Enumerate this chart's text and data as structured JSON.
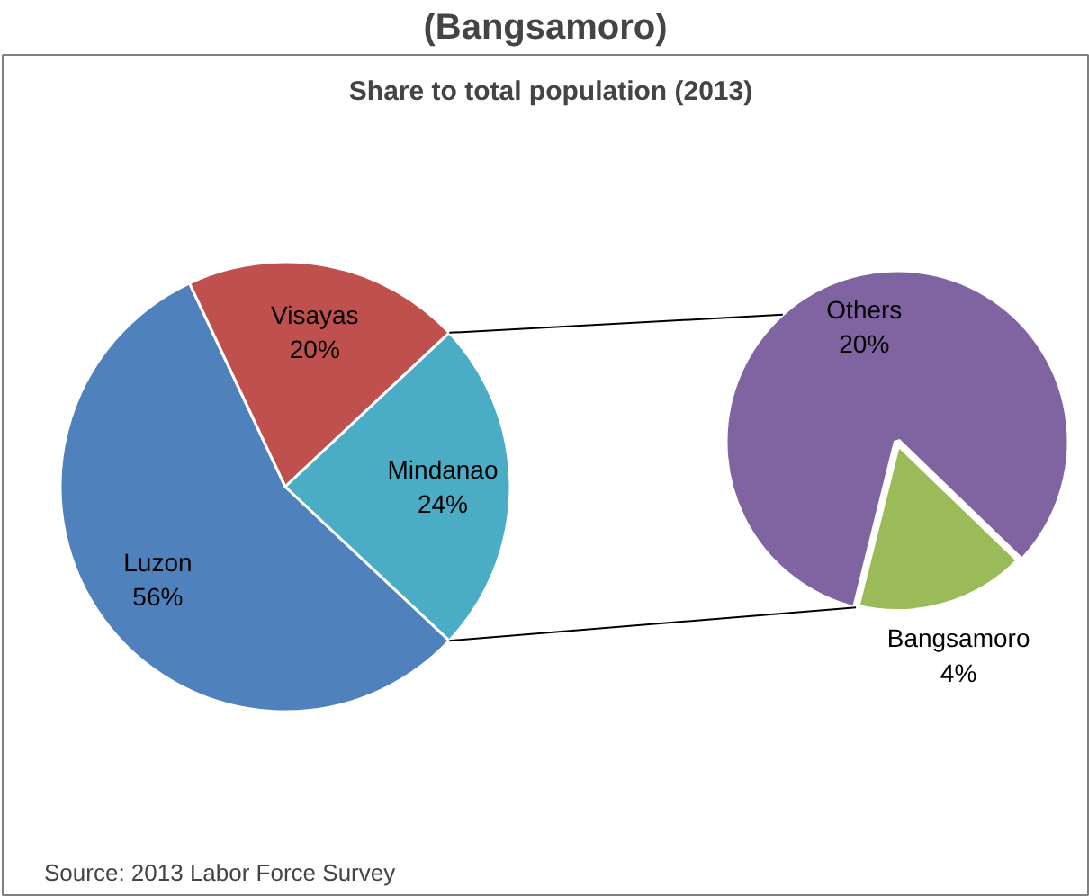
{
  "chart_data": [
    {
      "type": "pie",
      "title": "(Bangsamoro)",
      "subtitle": "Share to total population (2013)",
      "categories": [
        "Luzon",
        "Visayas",
        "Mindanao"
      ],
      "values": [
        56,
        20,
        24
      ],
      "colors": [
        "#4f81bd",
        "#c0504d",
        "#4bacc6"
      ],
      "value_labels": [
        "56%",
        "20%",
        "24%"
      ],
      "annotations": [
        "Source: 2013 Labor Force Survey"
      ]
    },
    {
      "type": "pie",
      "categories": [
        "Others",
        "Bangsamoro"
      ],
      "values": [
        20,
        4
      ],
      "colors": [
        "#8064a2",
        "#9bbb59"
      ],
      "value_labels": [
        "20%",
        "4%"
      ]
    }
  ]
}
